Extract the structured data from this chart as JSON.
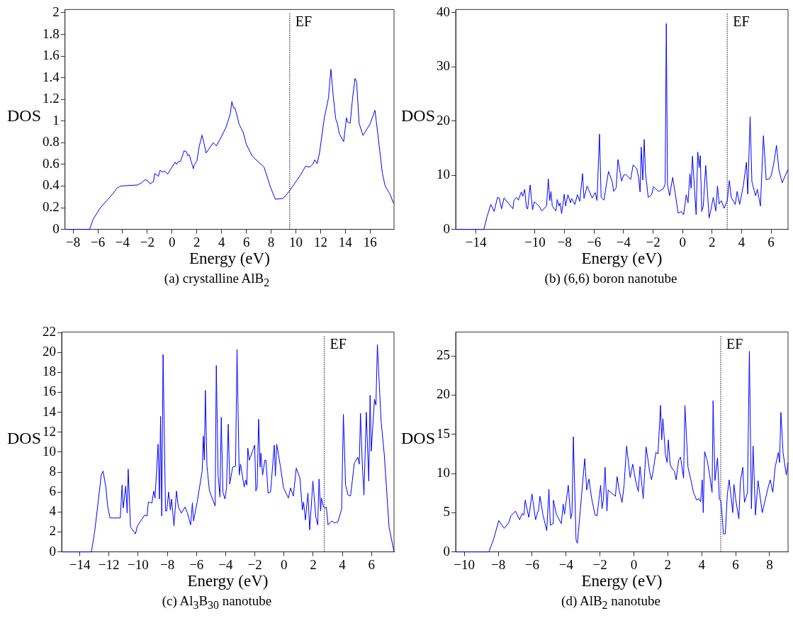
{
  "chart_data": [
    {
      "type": "line",
      "title": "(a) crystalline AlB$_{2}$",
      "xlabel": "Energy (eV)",
      "ylabel": "DOS",
      "xlim": [
        -8.65,
        17.93
      ],
      "ylim": [
        0,
        2.03
      ],
      "xticks": [
        -8,
        -6,
        -4,
        -2,
        0,
        2,
        4,
        6,
        8,
        10,
        12,
        14,
        16
      ],
      "yticks": [
        0,
        0.2,
        0.4,
        0.6,
        0.8,
        1,
        1.2,
        1.4,
        1.6,
        1.8,
        2
      ],
      "ref_lines": [
        {
          "axis": "x",
          "value": 9.5,
          "label": "EF",
          "color": "#000000",
          "line_style": "dotted"
        }
      ],
      "series": [
        {
          "color": "#0000ff",
          "x": [
            -8.62,
            -6.67,
            -6.37,
            -5.79,
            -4.81,
            -4.46,
            -4.19,
            -2.77,
            -2.47,
            -2.18,
            -1.99,
            -1.79,
            -1.5,
            -1.4,
            -1.11,
            -0.96,
            -0.78,
            -0.62,
            -0.37,
            0.25,
            0.35,
            0.51,
            0.68,
            0.97,
            1.17,
            1.27,
            1.38,
            1.56,
            1.72,
            1.77,
            2.0,
            2.2,
            2.42,
            2.59,
            2.75,
            3.33,
            3.57,
            3.96,
            4.35,
            4.7,
            4.83,
            4.97,
            5.09,
            5.42,
            5.75,
            6.0,
            6.49,
            7.43,
            7.95,
            8.34,
            8.97,
            9.51,
            10.39,
            10.78,
            11.13,
            11.4,
            11.52,
            11.72,
            11.91,
            12.3,
            12.63,
            12.83,
            13.02,
            13.22,
            13.35,
            13.51,
            13.86,
            14.09,
            14.19,
            14.39,
            14.58,
            14.78,
            14.91,
            15.11,
            15.42,
            16.0,
            16.39,
            16.63,
            16.98,
            17.21,
            17.6,
            17.9
          ],
          "values": [
            0,
            0,
            0.095,
            0.2,
            0.326,
            0.379,
            0.4,
            0.41,
            0.43,
            0.459,
            0.45,
            0.42,
            0.44,
            0.516,
            0.49,
            0.547,
            0.526,
            0.54,
            0.51,
            0.62,
            0.6,
            0.627,
            0.627,
            0.726,
            0.716,
            0.68,
            0.69,
            0.62,
            0.56,
            0.59,
            0.63,
            0.77,
            0.87,
            0.79,
            0.705,
            0.8,
            0.77,
            0.85,
            0.94,
            1.067,
            1.18,
            1.12,
            1.12,
            0.97,
            0.895,
            0.785,
            0.674,
            0.575,
            0.39,
            0.278,
            0.286,
            0.358,
            0.505,
            0.583,
            0.575,
            0.606,
            0.642,
            0.606,
            0.705,
            1.03,
            1.21,
            1.478,
            1.232,
            1.02,
            0.98,
            0.884,
            0.81,
            1.03,
            0.99,
            0.98,
            1.21,
            1.394,
            1.358,
            0.98,
            0.867,
            0.975,
            1.1,
            0.874,
            0.526,
            0.4,
            0.326,
            0.24
          ]
        }
      ]
    },
    {
      "type": "line",
      "title": "(b) (6,6) boron nanotube",
      "xlabel": "Energy (eV)",
      "ylabel": "DOS",
      "xlim": [
        -15.38,
        7.15
      ],
      "ylim": [
        0,
        40.6
      ],
      "xticks": [
        -14,
        -10,
        -8,
        -6,
        -4,
        -2,
        0,
        2,
        4,
        6
      ],
      "yticks": [
        0,
        10,
        20,
        30,
        40
      ],
      "ref_lines": [
        {
          "axis": "x",
          "value": 3.03,
          "label": "EF",
          "color": "#000000",
          "line_style": "dotted"
        }
      ],
      "series": [
        {
          "color": "#0000ff",
          "x": [
            -15.38,
            -13.47,
            -13.27,
            -13.0,
            -12.77,
            -12.55,
            -12.43,
            -12.27,
            -12.1,
            -11.5,
            -11.43,
            -11.25,
            -11.13,
            -10.93,
            -10.83,
            -10.7,
            -10.58,
            -10.5,
            -10.33,
            -10.17,
            -10.05,
            -9.72,
            -9.55,
            -9.22,
            -9.1,
            -9.0,
            -8.92,
            -8.83,
            -8.58,
            -8.5,
            -8.38,
            -8.3,
            -8.2,
            -8.02,
            -7.93,
            -7.77,
            -7.6,
            -7.52,
            -7.3,
            -7.13,
            -6.97,
            -6.78,
            -6.68,
            -6.47,
            -6.27,
            -6.13,
            -5.92,
            -5.8,
            -5.63,
            -5.52,
            -5.33,
            -5.02,
            -4.77,
            -4.67,
            -4.5,
            -4.38,
            -4.25,
            -4.13,
            -4.0,
            -3.83,
            -3.52,
            -3.35,
            -3.1,
            -2.97,
            -2.88,
            -2.8,
            -2.7,
            -2.6,
            -2.52,
            -2.33,
            -2.1,
            -1.97,
            -1.63,
            -1.3,
            -1.18,
            -1.1,
            -1.02,
            -0.88,
            -0.67,
            -0.5,
            -0.3,
            -0.08,
            0.07,
            0.25,
            0.37,
            0.5,
            0.58,
            0.67,
            0.92,
            1.03,
            1.13,
            1.2,
            1.3,
            1.4,
            1.57,
            1.8,
            1.95,
            2.08,
            2.25,
            2.37,
            2.48,
            2.63,
            2.82,
            3.03,
            3.17,
            3.3,
            3.57,
            3.7,
            3.87,
            4.12,
            4.33,
            4.42,
            4.58,
            4.7,
            4.95,
            5.07,
            5.28,
            5.48,
            5.67,
            5.87,
            6.0,
            6.17,
            6.37,
            6.53,
            6.75,
            7.15
          ],
          "values": [
            0,
            0,
            2.2,
            4.6,
            3.3,
            5.9,
            5.8,
            3.8,
            5.8,
            3.8,
            5.4,
            5.9,
            5.4,
            6.9,
            6.1,
            7.4,
            3.9,
            3.8,
            8.2,
            3.6,
            5.1,
            4.3,
            3.4,
            4.3,
            9.3,
            5.3,
            7.0,
            4.3,
            3.4,
            5.5,
            4.3,
            4.9,
            2.9,
            6.5,
            4.3,
            6.4,
            4.9,
            5.7,
            4.6,
            6.4,
            5.2,
            10.3,
            5.7,
            8.0,
            6.7,
            5.8,
            6.8,
            5.3,
            17.6,
            5.9,
            5.4,
            10.7,
            8.8,
            7.0,
            7.7,
            12.9,
            10.8,
            8.9,
            10.0,
            10.1,
            9.2,
            11.9,
            11.2,
            9.4,
            6.9,
            15.2,
            9.1,
            16.6,
            10.7,
            5.9,
            6.4,
            7.9,
            7.0,
            7.5,
            8.4,
            38.0,
            8.2,
            6.2,
            9.6,
            6.7,
            3.0,
            3.3,
            2.7,
            6.4,
            4.9,
            10.3,
            7.6,
            13.5,
            2.7,
            14.3,
            11.4,
            13.6,
            3.3,
            4.2,
            11.8,
            2.1,
            4.0,
            5.9,
            3.4,
            8.0,
            4.7,
            5.3,
            3.9,
            5.3,
            9.0,
            5.9,
            4.6,
            7.0,
            4.6,
            8.1,
            12.4,
            6.5,
            20.8,
            8.8,
            6.2,
            7.4,
            4.3,
            17.3,
            9.2,
            9.3,
            9.9,
            12.0,
            15.5,
            11.0,
            8.6,
            11.1
          ]
        }
      ]
    },
    {
      "type": "line",
      "title": "(c) Al$_{3}$B$_{30}$ nanotube",
      "xlabel": "Energy (eV)",
      "ylabel": "DOS",
      "xlim": [
        -15.24,
        7.54
      ],
      "ylim": [
        0,
        22.05
      ],
      "xticks": [
        -14,
        -12,
        -10,
        -8,
        -6,
        -4,
        -2,
        0,
        2,
        4,
        6
      ],
      "yticks": [
        0,
        2,
        4,
        6,
        8,
        10,
        12,
        14,
        16,
        18,
        20,
        22
      ],
      "ref_lines": [
        {
          "axis": "x",
          "value": 2.76,
          "label": "EF",
          "color": "#000000",
          "line_style": "dotted"
        }
      ],
      "series": [
        {
          "color": "#0000ff",
          "x": [
            -15.24,
            -13.2,
            -12.98,
            -12.81,
            -12.65,
            -12.53,
            -12.4,
            -12.2,
            -12.1,
            -11.93,
            -11.22,
            -11.1,
            -11.02,
            -10.85,
            -10.75,
            -10.68,
            -10.52,
            -10.18,
            -10.05,
            -9.55,
            -9.38,
            -9.3,
            -9.05,
            -8.93,
            -8.84,
            -8.63,
            -8.54,
            -8.46,
            -8.38,
            -8.29,
            -8.12,
            -8.04,
            -7.91,
            -7.79,
            -7.71,
            -7.54,
            -7.37,
            -7.24,
            -7.04,
            -6.78,
            -6.62,
            -6.4,
            -6.28,
            -6.2,
            -5.95,
            -5.61,
            -5.53,
            -5.46,
            -5.39,
            -5.28,
            -5.11,
            -4.72,
            -4.64,
            -4.52,
            -4.39,
            -4.3,
            -4.19,
            -4.05,
            -3.94,
            -3.82,
            -3.72,
            -3.52,
            -3.32,
            -3.22,
            -3.07,
            -2.98,
            -2.73,
            -2.63,
            -2.55,
            -2.48,
            -2.38,
            -2.01,
            -1.93,
            -1.84,
            -1.74,
            -1.64,
            -1.58,
            -1.47,
            -1.31,
            -1.24,
            -1.09,
            -0.92,
            -0.67,
            -0.59,
            -0.5,
            -0.25,
            -0.03,
            0.3,
            0.45,
            0.64,
            0.84,
            1.09,
            1.26,
            1.34,
            1.47,
            1.64,
            1.76,
            1.98,
            2.18,
            2.31,
            2.4,
            2.51,
            2.56,
            2.71,
            2.81,
            2.9,
            3.02,
            3.27,
            3.48,
            3.69,
            3.85,
            3.95,
            4.07,
            4.22,
            4.39,
            4.56,
            4.82,
            5.06,
            5.16,
            5.24,
            5.36,
            5.48,
            5.64,
            5.81,
            5.9,
            5.98,
            6.2,
            6.3,
            6.4,
            6.65,
            6.87,
            7.2,
            7.54
          ],
          "values": [
            0,
            0,
            2.0,
            4.1,
            6.1,
            7.7,
            8.1,
            6.4,
            4.7,
            3.4,
            3.4,
            6.7,
            4.4,
            6.6,
            3.9,
            8.3,
            2.5,
            1.8,
            2.6,
            3.7,
            3.6,
            5.0,
            4.9,
            6.1,
            5.4,
            10.8,
            5.3,
            13.6,
            3.6,
            19.8,
            4.1,
            4.1,
            6.0,
            4.2,
            5.3,
            2.6,
            6.1,
            4.5,
            3.9,
            4.5,
            3.9,
            2.7,
            4.9,
            3.1,
            5.0,
            8.1,
            11.6,
            9.2,
            16.2,
            8.6,
            6.1,
            4.6,
            18.7,
            7.7,
            5.5,
            13.5,
            6.0,
            5.3,
            6.4,
            12.8,
            6.8,
            8.5,
            8.6,
            20.3,
            7.7,
            8.8,
            6.5,
            7.2,
            6.7,
            10.4,
            9.2,
            10.7,
            6.1,
            6.5,
            13.3,
            8.5,
            9.9,
            7.7,
            9.2,
            9.2,
            5.9,
            6.0,
            10.7,
            7.6,
            10.8,
            8.6,
            6.4,
            5.4,
            6.4,
            5.6,
            8.4,
            7.4,
            4.2,
            5.0,
            3.2,
            5.9,
            2.2,
            7.1,
            3.5,
            2.7,
            7.3,
            4.1,
            5.4,
            4.5,
            4.4,
            4.5,
            2.7,
            3.1,
            2.9,
            3.0,
            3.8,
            4.3,
            13.8,
            6.7,
            5.7,
            5.6,
            8.9,
            9.5,
            8.8,
            13.9,
            9.0,
            5.7,
            14.0,
            7.1,
            15.7,
            10.1,
            15.3,
            14.7,
            20.8,
            13.2,
            9.8,
            2.5,
            0
          ]
        }
      ]
    },
    {
      "type": "line",
      "title": "(d) AlB$_{2}$ nanotube",
      "xlabel": "Energy (eV)",
      "ylabel": "DOS",
      "xlim": [
        -10.51,
        9.09
      ],
      "ylim": [
        0,
        28.06
      ],
      "xticks": [
        -10,
        -8,
        -6,
        -4,
        -2,
        0,
        2,
        4,
        6,
        8
      ],
      "yticks": [
        0,
        5,
        10,
        15,
        20,
        25
      ],
      "ref_lines": [
        {
          "axis": "x",
          "value": 5.12,
          "label": "EF",
          "color": "#000000",
          "line_style": "dotted"
        }
      ],
      "series": [
        {
          "color": "#0000ff",
          "x": [
            -10.51,
            -8.55,
            -8.26,
            -7.97,
            -7.65,
            -7.39,
            -7.25,
            -6.99,
            -6.74,
            -6.59,
            -6.49,
            -6.41,
            -6.2,
            -6.01,
            -5.8,
            -5.61,
            -5.54,
            -5.36,
            -5.14,
            -5.01,
            -4.93,
            -4.78,
            -4.75,
            -4.57,
            -4.28,
            -4.17,
            -4.09,
            -3.87,
            -3.72,
            -3.65,
            -3.57,
            -3.41,
            -3.33,
            -2.9,
            -2.78,
            -2.65,
            -2.49,
            -2.29,
            -2.17,
            -2.06,
            -1.96,
            -1.88,
            -1.8,
            -1.7,
            -1.59,
            -1.52,
            -1.09,
            -0.99,
            -0.87,
            -0.7,
            -0.58,
            -0.43,
            -0.22,
            -0.07,
            0.1,
            0.26,
            0.36,
            0.55,
            0.72,
            0.94,
            1.04,
            1.13,
            1.3,
            1.42,
            1.57,
            1.64,
            1.71,
            1.86,
            1.96,
            2.03,
            2.14,
            2.29,
            2.39,
            2.49,
            2.64,
            2.75,
            2.93,
            3.01,
            3.19,
            3.36,
            3.51,
            3.7,
            3.84,
            3.94,
            4.03,
            4.09,
            4.17,
            4.32,
            4.46,
            4.61,
            4.67,
            4.78,
            4.93,
            5.04,
            5.14,
            5.28,
            5.39,
            5.51,
            5.62,
            5.83,
            5.9,
            6.01,
            6.19,
            6.28,
            6.42,
            6.52,
            6.7,
            6.81,
            6.93,
            7.03,
            7.17,
            7.32,
            7.57,
            7.9,
            8.04,
            8.19,
            8.33,
            8.52,
            8.59,
            8.67,
            8.8,
            8.99,
            9.09
          ],
          "values": [
            0,
            0,
            1.7,
            4.0,
            3.0,
            3.7,
            4.6,
            5.2,
            4.1,
            4.9,
            4.7,
            6.6,
            4.4,
            7.4,
            4.1,
            5.5,
            7.1,
            4.7,
            2.7,
            8.0,
            3.4,
            3.6,
            6.6,
            4.8,
            3.6,
            6.1,
            4.8,
            8.5,
            4.2,
            5.0,
            14.7,
            1.5,
            1.1,
            11.9,
            7.9,
            9.3,
            6.8,
            4.7,
            4.6,
            6.7,
            8.5,
            5.5,
            6.7,
            10.8,
            5.2,
            7.9,
            7.1,
            9.6,
            7.9,
            6.3,
            8.5,
            13.5,
            9.5,
            11.2,
            9.1,
            7.7,
            10.9,
            6.8,
            13.4,
            10.1,
            9.2,
            10.3,
            12.7,
            12.5,
            18.7,
            14.3,
            17.0,
            12.4,
            11.4,
            14.3,
            11.1,
            10.5,
            10.3,
            9.2,
            11.7,
            12.1,
            9.4,
            18.7,
            10.8,
            9.2,
            7.6,
            6.6,
            6.8,
            6.4,
            9.2,
            5.0,
            12.8,
            11.7,
            9.9,
            7.6,
            19.3,
            9.1,
            12.0,
            6.8,
            6.4,
            2.3,
            2.3,
            7.3,
            9.2,
            5.0,
            8.6,
            6.6,
            4.2,
            9.0,
            10.8,
            6.3,
            7.6,
            25.6,
            5.5,
            13.5,
            4.7,
            9.1,
            5.0,
            8.1,
            9.2,
            7.6,
            10.8,
            12.7,
            11.4,
            17.8,
            12.6,
            9.8,
            11.4
          ]
        }
      ]
    }
  ]
}
